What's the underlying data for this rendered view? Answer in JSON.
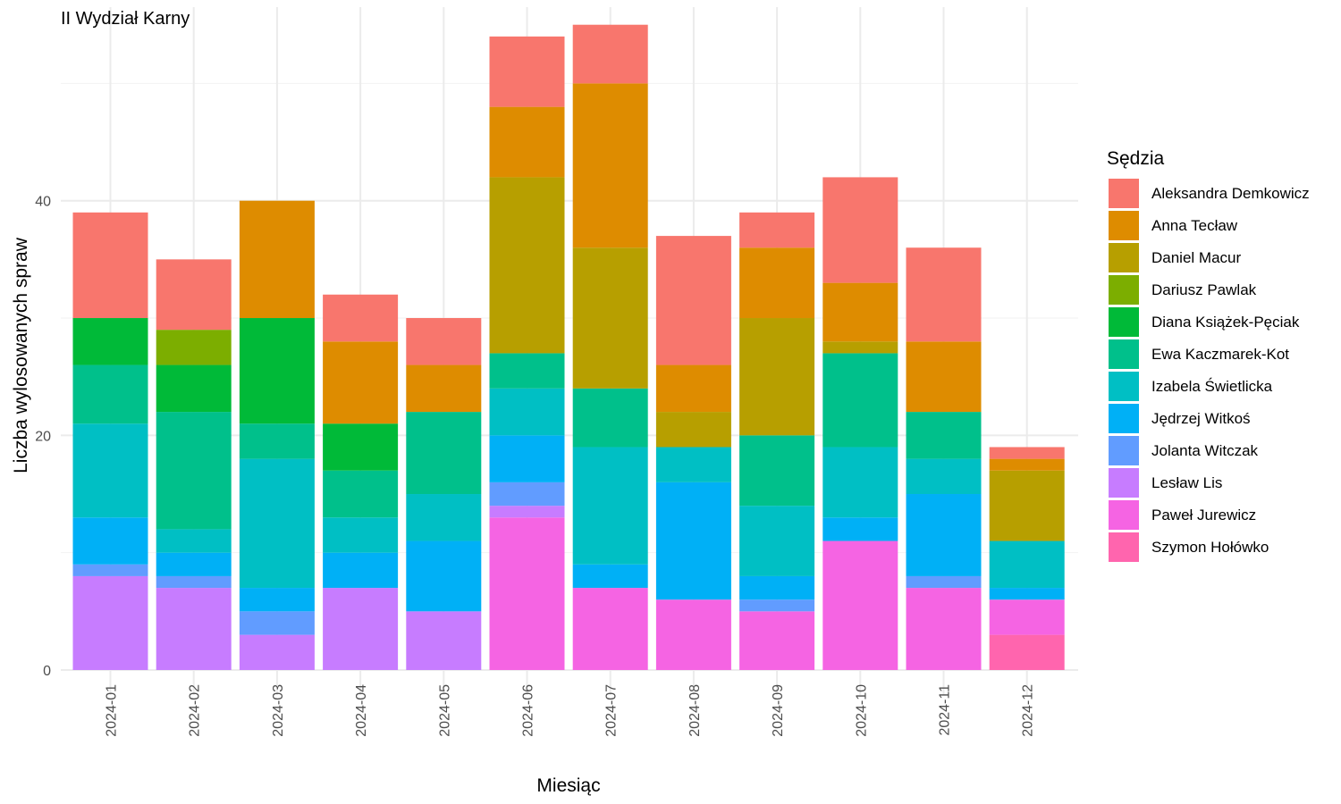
{
  "chart_data": {
    "type": "bar",
    "stacked": true,
    "title": "II Wydział Karny",
    "xlabel": "Miesiąc",
    "ylabel": "Liczba wylosowanych spraw",
    "ylim": [
      0,
      56.5
    ],
    "yticks": [
      0,
      20,
      40
    ],
    "grid": true,
    "legend": {
      "title": "Sędzia",
      "position": "right"
    },
    "categories": [
      "2024-01",
      "2024-02",
      "2024-03",
      "2024-04",
      "2024-05",
      "2024-06",
      "2024-07",
      "2024-08",
      "2024-09",
      "2024-10",
      "2024-11",
      "2024-12"
    ],
    "series": [
      {
        "name": "Szymon Hołówko",
        "color": "#FF65AE",
        "values": [
          0,
          0,
          0,
          0,
          0,
          0,
          0,
          0,
          0,
          0,
          0,
          3
        ]
      },
      {
        "name": "Paweł Jurewicz",
        "color": "#F564E3",
        "values": [
          0,
          0,
          0,
          0,
          0,
          13,
          7,
          6,
          5,
          11,
          7,
          3
        ]
      },
      {
        "name": "Lesław Lis",
        "color": "#C77CFF",
        "values": [
          8,
          7,
          3,
          7,
          5,
          1,
          0,
          0,
          0,
          0,
          0,
          0
        ]
      },
      {
        "name": "Jolanta Witczak",
        "color": "#619CFF",
        "values": [
          1,
          1,
          2,
          0,
          0,
          2,
          0,
          0,
          1,
          0,
          1,
          0
        ]
      },
      {
        "name": "Jędrzej Witkoś",
        "color": "#00B0F6",
        "values": [
          4,
          2,
          2,
          3,
          6,
          4,
          2,
          10,
          2,
          2,
          7,
          1
        ]
      },
      {
        "name": "Izabela Świetlicka",
        "color": "#00BFC4",
        "values": [
          8,
          2,
          11,
          3,
          4,
          4,
          10,
          3,
          6,
          6,
          3,
          4
        ]
      },
      {
        "name": "Ewa Kaczmarek-Kot",
        "color": "#00C08B",
        "values": [
          5,
          10,
          3,
          4,
          7,
          3,
          5,
          0,
          6,
          8,
          4,
          0
        ]
      },
      {
        "name": "Diana Książek-Pęciak",
        "color": "#00BA38",
        "values": [
          4,
          4,
          9,
          4,
          0,
          0,
          0,
          0,
          0,
          0,
          0,
          0
        ]
      },
      {
        "name": "Dariusz Pawlak",
        "color": "#7CAE00",
        "values": [
          0,
          3,
          0,
          0,
          0,
          0,
          0,
          0,
          0,
          0,
          0,
          0
        ]
      },
      {
        "name": "Daniel Macur",
        "color": "#B79F00",
        "values": [
          0,
          0,
          0,
          0,
          0,
          15,
          12,
          3,
          10,
          1,
          0,
          6
        ]
      },
      {
        "name": "Anna Tecław",
        "color": "#DE8C00",
        "values": [
          0,
          0,
          10,
          7,
          4,
          6,
          14,
          4,
          6,
          5,
          6,
          1
        ]
      },
      {
        "name": "Aleksandra Demkowicz",
        "color": "#F8766D",
        "values": [
          9,
          6,
          0,
          4,
          4,
          6,
          5,
          11,
          3,
          9,
          8,
          1
        ]
      }
    ]
  }
}
